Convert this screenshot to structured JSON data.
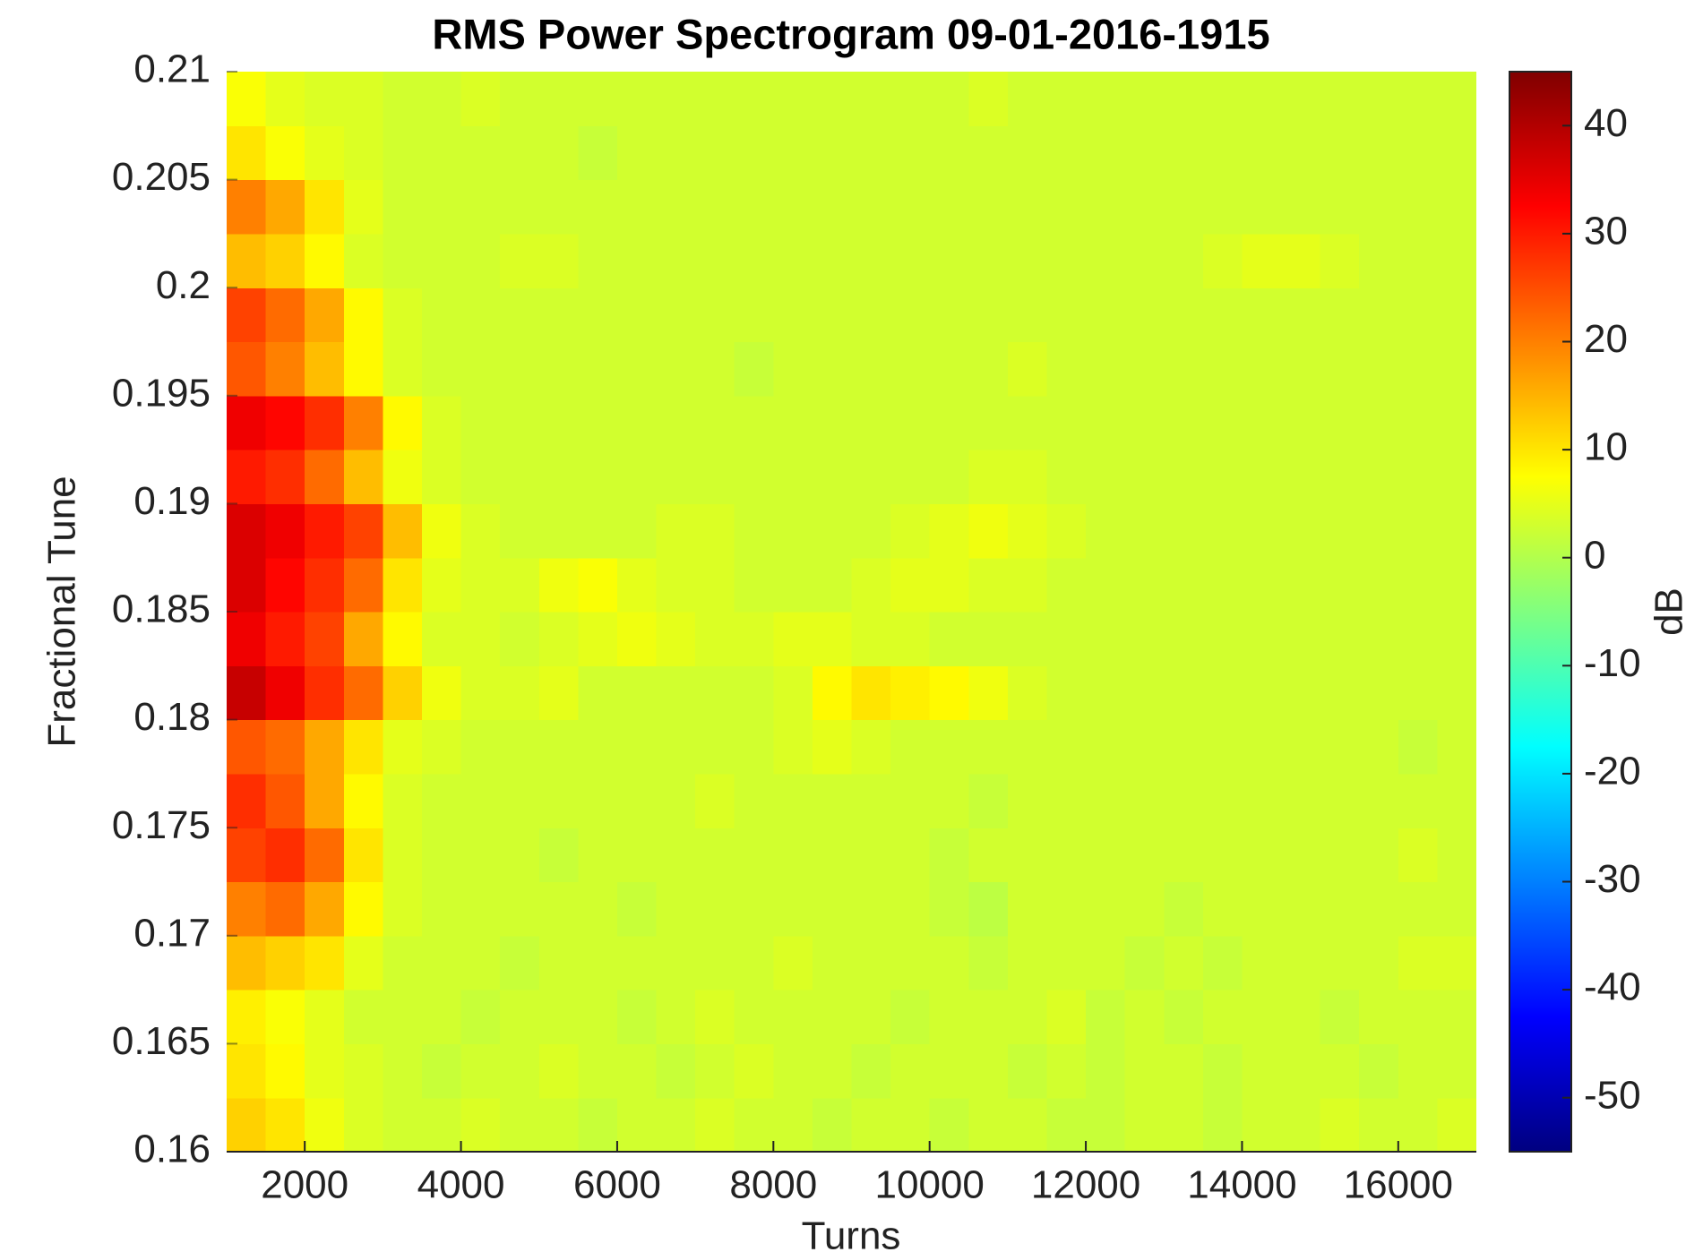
{
  "chart_data": {
    "type": "heatmap",
    "title": "RMS Power Spectrogram 09-01-2016-1915",
    "x_label": "Turns",
    "y_label": "Fractional Tune",
    "colorbar_label": "dB",
    "colormap": "jet",
    "x": [
      1250,
      1750,
      2250,
      2750,
      3250,
      3750,
      4250,
      4750,
      5250,
      5750,
      6250,
      6750,
      7250,
      7750,
      8250,
      8750,
      9250,
      9750,
      10250,
      10750,
      11250,
      11750,
      12250,
      12750,
      13250,
      13750,
      14250,
      14750,
      15250,
      15750,
      16250,
      16750
    ],
    "y": [
      0.16125,
      0.16375,
      0.16625,
      0.16875,
      0.17125,
      0.17375,
      0.17625,
      0.17875,
      0.18125,
      0.18375,
      0.18625,
      0.18875,
      0.19125,
      0.19375,
      0.19625,
      0.19875,
      0.20125,
      0.20375,
      0.20625,
      0.20875
    ],
    "z": [
      [
        12,
        10,
        6,
        4,
        3,
        3,
        4,
        3,
        3,
        2,
        3,
        3,
        4,
        3,
        3,
        2,
        3,
        3,
        2,
        3,
        3,
        2,
        2,
        3,
        3,
        2,
        3,
        3,
        4,
        3,
        3,
        4
      ],
      [
        10,
        8,
        5,
        4,
        3,
        2,
        3,
        3,
        4,
        3,
        3,
        2,
        3,
        4,
        3,
        3,
        2,
        3,
        3,
        3,
        2,
        3,
        2,
        3,
        3,
        2,
        3,
        3,
        3,
        2,
        3,
        3
      ],
      [
        9,
        7,
        5,
        3,
        3,
        3,
        2,
        3,
        3,
        3,
        2,
        3,
        4,
        3,
        3,
        3,
        3,
        2,
        3,
        3,
        3,
        4,
        2,
        3,
        2,
        3,
        3,
        3,
        2,
        3,
        3,
        3
      ],
      [
        14,
        12,
        10,
        5,
        3,
        3,
        3,
        2,
        3,
        3,
        3,
        3,
        3,
        3,
        4,
        3,
        3,
        3,
        3,
        2,
        3,
        3,
        3,
        2,
        3,
        2,
        3,
        3,
        3,
        3,
        4,
        4
      ],
      [
        20,
        22,
        16,
        8,
        4,
        3,
        3,
        3,
        3,
        3,
        2,
        3,
        3,
        3,
        3,
        3,
        3,
        3,
        2,
        1,
        3,
        3,
        3,
        3,
        2,
        3,
        3,
        3,
        3,
        3,
        3,
        3
      ],
      [
        26,
        28,
        22,
        10,
        4,
        3,
        3,
        3,
        2,
        3,
        3,
        3,
        3,
        3,
        3,
        3,
        3,
        3,
        2,
        3,
        3,
        3,
        3,
        3,
        3,
        3,
        3,
        3,
        3,
        3,
        4,
        3
      ],
      [
        28,
        24,
        16,
        8,
        4,
        3,
        3,
        3,
        3,
        3,
        3,
        3,
        4,
        3,
        3,
        3,
        3,
        3,
        3,
        2,
        3,
        3,
        3,
        3,
        3,
        3,
        3,
        3,
        3,
        3,
        3,
        3
      ],
      [
        24,
        22,
        16,
        10,
        5,
        4,
        3,
        3,
        3,
        3,
        3,
        3,
        3,
        3,
        4,
        5,
        4,
        3,
        3,
        3,
        3,
        3,
        3,
        3,
        3,
        3,
        3,
        3,
        3,
        3,
        2,
        3
      ],
      [
        38,
        34,
        28,
        22,
        12,
        6,
        4,
        4,
        5,
        3,
        3,
        3,
        3,
        3,
        4,
        8,
        10,
        9,
        8,
        6,
        4,
        3,
        3,
        3,
        3,
        3,
        3,
        3,
        3,
        3,
        3,
        3
      ],
      [
        34,
        30,
        26,
        16,
        8,
        4,
        4,
        3,
        4,
        5,
        6,
        5,
        4,
        4,
        5,
        5,
        4,
        4,
        3,
        3,
        3,
        3,
        3,
        3,
        3,
        3,
        3,
        3,
        3,
        3,
        3,
        3
      ],
      [
        36,
        32,
        28,
        22,
        10,
        5,
        4,
        4,
        6,
        7,
        5,
        4,
        4,
        3,
        3,
        3,
        4,
        5,
        5,
        4,
        4,
        3,
        3,
        3,
        3,
        3,
        3,
        3,
        3,
        3,
        3,
        3
      ],
      [
        36,
        34,
        30,
        26,
        14,
        6,
        4,
        3,
        3,
        3,
        3,
        4,
        4,
        3,
        3,
        3,
        3,
        4,
        5,
        6,
        5,
        4,
        3,
        3,
        3,
        3,
        3,
        3,
        3,
        3,
        3,
        3
      ],
      [
        30,
        28,
        22,
        14,
        6,
        4,
        3,
        3,
        3,
        3,
        3,
        3,
        3,
        3,
        3,
        3,
        3,
        3,
        3,
        4,
        4,
        3,
        3,
        3,
        3,
        3,
        3,
        3,
        3,
        3,
        3,
        3
      ],
      [
        34,
        32,
        28,
        20,
        8,
        4,
        3,
        3,
        3,
        3,
        3,
        3,
        3,
        3,
        3,
        3,
        3,
        3,
        3,
        3,
        3,
        3,
        3,
        3,
        3,
        3,
        3,
        3,
        3,
        3,
        3,
        3
      ],
      [
        24,
        20,
        14,
        8,
        4,
        3,
        3,
        3,
        3,
        3,
        3,
        3,
        3,
        2,
        3,
        3,
        3,
        3,
        3,
        3,
        4,
        3,
        3,
        3,
        3,
        3,
        3,
        3,
        3,
        3,
        3,
        3
      ],
      [
        26,
        22,
        16,
        8,
        4,
        3,
        3,
        3,
        3,
        3,
        3,
        3,
        3,
        3,
        3,
        3,
        3,
        3,
        3,
        3,
        3,
        3,
        3,
        3,
        3,
        3,
        3,
        3,
        3,
        3,
        3,
        3
      ],
      [
        14,
        12,
        8,
        4,
        3,
        3,
        3,
        4,
        4,
        3,
        3,
        3,
        3,
        3,
        3,
        3,
        3,
        3,
        3,
        3,
        3,
        3,
        3,
        3,
        3,
        4,
        5,
        5,
        4,
        3,
        3,
        3
      ],
      [
        20,
        16,
        10,
        5,
        3,
        3,
        3,
        3,
        3,
        3,
        3,
        3,
        3,
        3,
        3,
        3,
        3,
        3,
        3,
        3,
        3,
        3,
        3,
        3,
        3,
        3,
        3,
        3,
        3,
        3,
        3,
        3
      ],
      [
        10,
        7,
        5,
        4,
        3,
        3,
        3,
        3,
        3,
        2,
        3,
        3,
        3,
        3,
        3,
        3,
        3,
        3,
        3,
        3,
        3,
        3,
        3,
        3,
        3,
        3,
        3,
        3,
        3,
        3,
        3,
        3
      ],
      [
        7,
        5,
        4,
        4,
        3,
        3,
        4,
        3,
        3,
        3,
        3,
        3,
        3,
        3,
        3,
        3,
        3,
        3,
        3,
        4,
        3,
        3,
        3,
        3,
        3,
        3,
        3,
        3,
        3,
        3,
        3,
        3
      ]
    ],
    "xlim": [
      1000,
      17000
    ],
    "xticks": [
      2000,
      4000,
      6000,
      8000,
      10000,
      12000,
      14000,
      16000
    ],
    "ylim": [
      0.16,
      0.21
    ],
    "yticks": [
      0.16,
      0.165,
      0.17,
      0.175,
      0.18,
      0.185,
      0.19,
      0.195,
      0.2,
      0.205,
      0.21
    ],
    "clim": [
      -55,
      45
    ],
    "cticks": [
      -50,
      -40,
      -30,
      -20,
      -10,
      0,
      10,
      20,
      30,
      40
    ]
  }
}
